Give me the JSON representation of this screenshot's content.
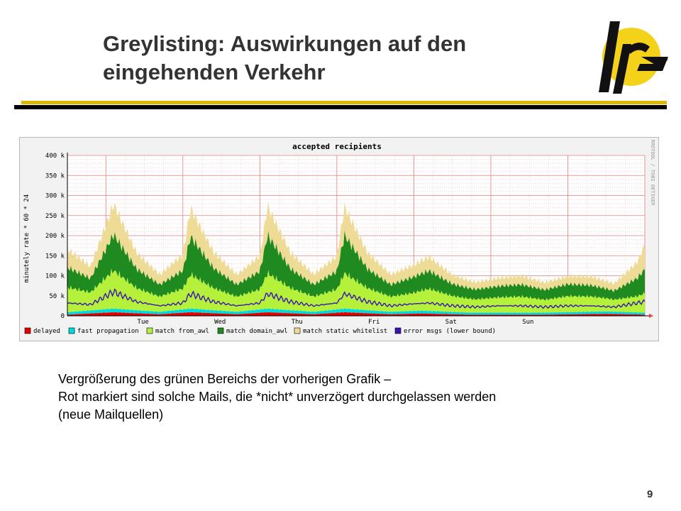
{
  "slide": {
    "title_line1": "Greylisting: Auswirkungen auf den",
    "title_line2": "eingehenden Verkehr",
    "logo_text": "lrz",
    "caption_line1": "Vergrößerung des grünen Bereichs der vorherigen Grafik –",
    "caption_line2": "Rot markiert sind solche Mails, die *nicht* unverzögert durchgelassen werden",
    "caption_line3": "(neue Mailquellen)",
    "page_number": "9"
  },
  "colors": {
    "accent_gold": "#ddb700",
    "logo_yellow": "#f5d21a",
    "delayed": "#e60000",
    "fast_propagation": "#00d7e0",
    "match_from_awl": "#b5f03a",
    "match_domain_awl": "#1f8a1f",
    "match_static_whitelist": "#eddb96",
    "error_msgs": "#3a14b0"
  },
  "chart_data": {
    "type": "area",
    "title": "accepted recipients",
    "ylabel": "minutely rate * 60 * 24",
    "side_label": "RRDTOOL / TOBI OETIKER",
    "ylim": [
      0,
      400000
    ],
    "yticks": [
      "0",
      "50 k",
      "100 k",
      "150 k",
      "200 k",
      "250 k",
      "300 k",
      "350 k",
      "400 k"
    ],
    "x_days": [
      "Tue",
      "Wed",
      "Thu",
      "Fri",
      "Sat",
      "Sun"
    ],
    "x_note": "one day per major grid division, 7.5 days shown (x = day index from left edge)",
    "x_range": [
      0,
      7.5
    ],
    "stacked": true,
    "series": [
      {
        "name": "delayed",
        "color": "#e60000",
        "x": [
          0,
          0.6,
          1.2,
          1.6,
          2.2,
          2.6,
          3.2,
          3.6,
          4.2,
          4.6,
          5.2,
          6.2,
          7.0,
          7.5
        ],
        "values": [
          3000,
          9000,
          4000,
          9000,
          4000,
          9000,
          4000,
          9000,
          4000,
          6000,
          3000,
          3000,
          5000,
          3000
        ]
      },
      {
        "name": "fast propagation",
        "color": "#00d7e0",
        "x": [
          0,
          0.6,
          1.2,
          1.6,
          2.2,
          2.6,
          3.2,
          3.6,
          4.2,
          4.6,
          5.2,
          6.2,
          7.0,
          7.5
        ],
        "values": [
          6000,
          9000,
          6000,
          9000,
          6000,
          9000,
          6000,
          9000,
          6000,
          7000,
          5000,
          5000,
          6000,
          5000
        ]
      },
      {
        "name": "match from_awl",
        "color": "#b5f03a",
        "x": [
          0,
          0.3,
          0.6,
          0.9,
          1.2,
          1.5,
          1.6,
          1.9,
          2.2,
          2.5,
          2.6,
          2.9,
          3.2,
          3.5,
          3.6,
          3.9,
          4.2,
          4.5,
          4.7,
          5.0,
          5.3,
          5.6,
          5.9,
          6.2,
          6.5,
          6.8,
          7.1,
          7.4,
          7.5
        ],
        "values": [
          62000,
          45000,
          95000,
          55000,
          38000,
          52000,
          85000,
          55000,
          38000,
          50000,
          88000,
          55000,
          38000,
          50000,
          88000,
          55000,
          38000,
          45000,
          55000,
          40000,
          33000,
          38000,
          40000,
          32000,
          40000,
          38000,
          30000,
          40000,
          48000
        ]
      },
      {
        "name": "match domain_awl",
        "color": "#1f8a1f",
        "x": [
          0,
          0.3,
          0.6,
          0.9,
          1.2,
          1.5,
          1.6,
          1.9,
          2.2,
          2.5,
          2.6,
          2.9,
          3.2,
          3.5,
          3.6,
          3.9,
          4.2,
          4.5,
          4.7,
          5.0,
          5.3,
          5.6,
          5.9,
          6.2,
          6.5,
          6.8,
          7.1,
          7.4,
          7.5
        ],
        "values": [
          50000,
          35000,
          90000,
          48000,
          30000,
          45000,
          95000,
          50000,
          30000,
          45000,
          95000,
          48000,
          30000,
          45000,
          95000,
          48000,
          30000,
          40000,
          45000,
          30000,
          25000,
          28000,
          30000,
          25000,
          30000,
          28000,
          22000,
          45000,
          60000
        ]
      },
      {
        "name": "match static whitelist",
        "color": "#eddb96",
        "x": [
          0,
          0.3,
          0.6,
          0.9,
          1.2,
          1.5,
          1.6,
          1.9,
          2.2,
          2.5,
          2.6,
          2.9,
          3.2,
          3.5,
          3.6,
          3.9,
          4.2,
          4.5,
          4.7,
          5.0,
          5.3,
          5.6,
          5.9,
          6.2,
          6.5,
          6.8,
          7.1,
          7.4,
          7.5
        ],
        "values": [
          45000,
          30000,
          75000,
          40000,
          25000,
          40000,
          70000,
          40000,
          25000,
          38000,
          72000,
          40000,
          25000,
          38000,
          70000,
          40000,
          25000,
          30000,
          35000,
          22000,
          18000,
          20000,
          22000,
          18000,
          20000,
          22000,
          18000,
          40000,
          60000
        ]
      },
      {
        "name": "error msgs (lower bound)",
        "color": "#3a14b0",
        "line": true,
        "x": [
          0,
          0.3,
          0.6,
          0.9,
          1.2,
          1.5,
          1.6,
          1.9,
          2.2,
          2.5,
          2.6,
          2.9,
          3.2,
          3.5,
          3.6,
          3.9,
          4.2,
          4.5,
          4.7,
          5.0,
          5.3,
          5.6,
          5.9,
          6.2,
          6.5,
          6.8,
          7.1,
          7.4,
          7.5
        ],
        "values": [
          32000,
          28000,
          60000,
          35000,
          25000,
          32000,
          55000,
          35000,
          25000,
          32000,
          55000,
          35000,
          25000,
          32000,
          55000,
          35000,
          25000,
          30000,
          32000,
          25000,
          22000,
          25000,
          25000,
          22000,
          25000,
          25000,
          22000,
          32000,
          35000
        ]
      }
    ],
    "legend": [
      "delayed",
      "fast propagation",
      "match from_awl",
      "match domain_awl",
      "match static whitelist",
      "error msgs (lower bound)"
    ],
    "legend_position": "bottom",
    "grid": true
  }
}
